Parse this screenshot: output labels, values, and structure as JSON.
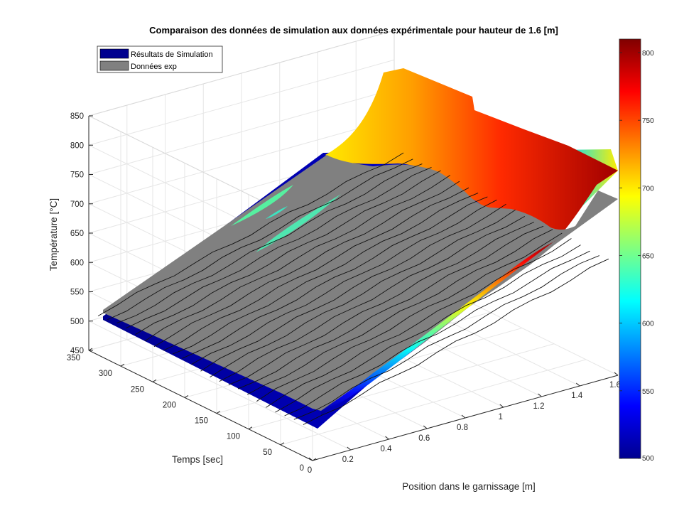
{
  "chart_data": {
    "type": "surface3d",
    "title": "Comparaison des données de simulation aux données expérimentale pour hauteur de 1.6 [m]",
    "xlabel": "Position dans le garnissage [m]",
    "ylabel": "Temps [sec]",
    "zlabel": "Température [°C]",
    "xlim": [
      0,
      1.6
    ],
    "ylim": [
      0,
      350
    ],
    "zlim": [
      450,
      850
    ],
    "x_ticks": [
      "0",
      "0.2",
      "0.4",
      "0.6",
      "0.8",
      "1",
      "1.2",
      "1.4",
      "1.6"
    ],
    "y_ticks": [
      "0",
      "50",
      "100",
      "150",
      "200",
      "250",
      "300",
      "350"
    ],
    "z_ticks": [
      "450",
      "500",
      "550",
      "600",
      "650",
      "700",
      "750",
      "800",
      "850"
    ],
    "colorbar": {
      "colormap": "jet",
      "range": [
        500,
        810
      ],
      "ticks": [
        "500",
        "550",
        "600",
        "650",
        "700",
        "750",
        "800"
      ]
    },
    "legend": {
      "placement": "top-left",
      "entries": [
        {
          "label": "Résultats de Simulation",
          "color": "#00008f"
        },
        {
          "label": "Données exp",
          "color": "#808080"
        }
      ]
    },
    "series": [
      {
        "name": "Résultats de Simulation",
        "kind": "surface",
        "x_samples": [
          0,
          0.2,
          0.4,
          0.6,
          0.8,
          1.0,
          1.2,
          1.4,
          1.6
        ],
        "temperature_profile_at_t0": [
          490,
          530,
          570,
          610,
          650,
          690,
          740,
          790,
          810
        ],
        "temperature_at_x0": [
          490,
          500
        ],
        "time_range": [
          0,
          350
        ],
        "color_scale": "jet"
      },
      {
        "name": "Données exp",
        "kind": "surface",
        "color": "#808080",
        "temperature_plane": {
          "at_x0_t0": 500,
          "at_x1.6_t0": 640,
          "at_x0_t350": 520,
          "at_x1.6_t350": 650
        },
        "time_rows": 24
      }
    ],
    "grid": true
  },
  "colors": {
    "exp_surface": "#808080",
    "sim_low": "#00008f",
    "sim_high": "#800000"
  }
}
